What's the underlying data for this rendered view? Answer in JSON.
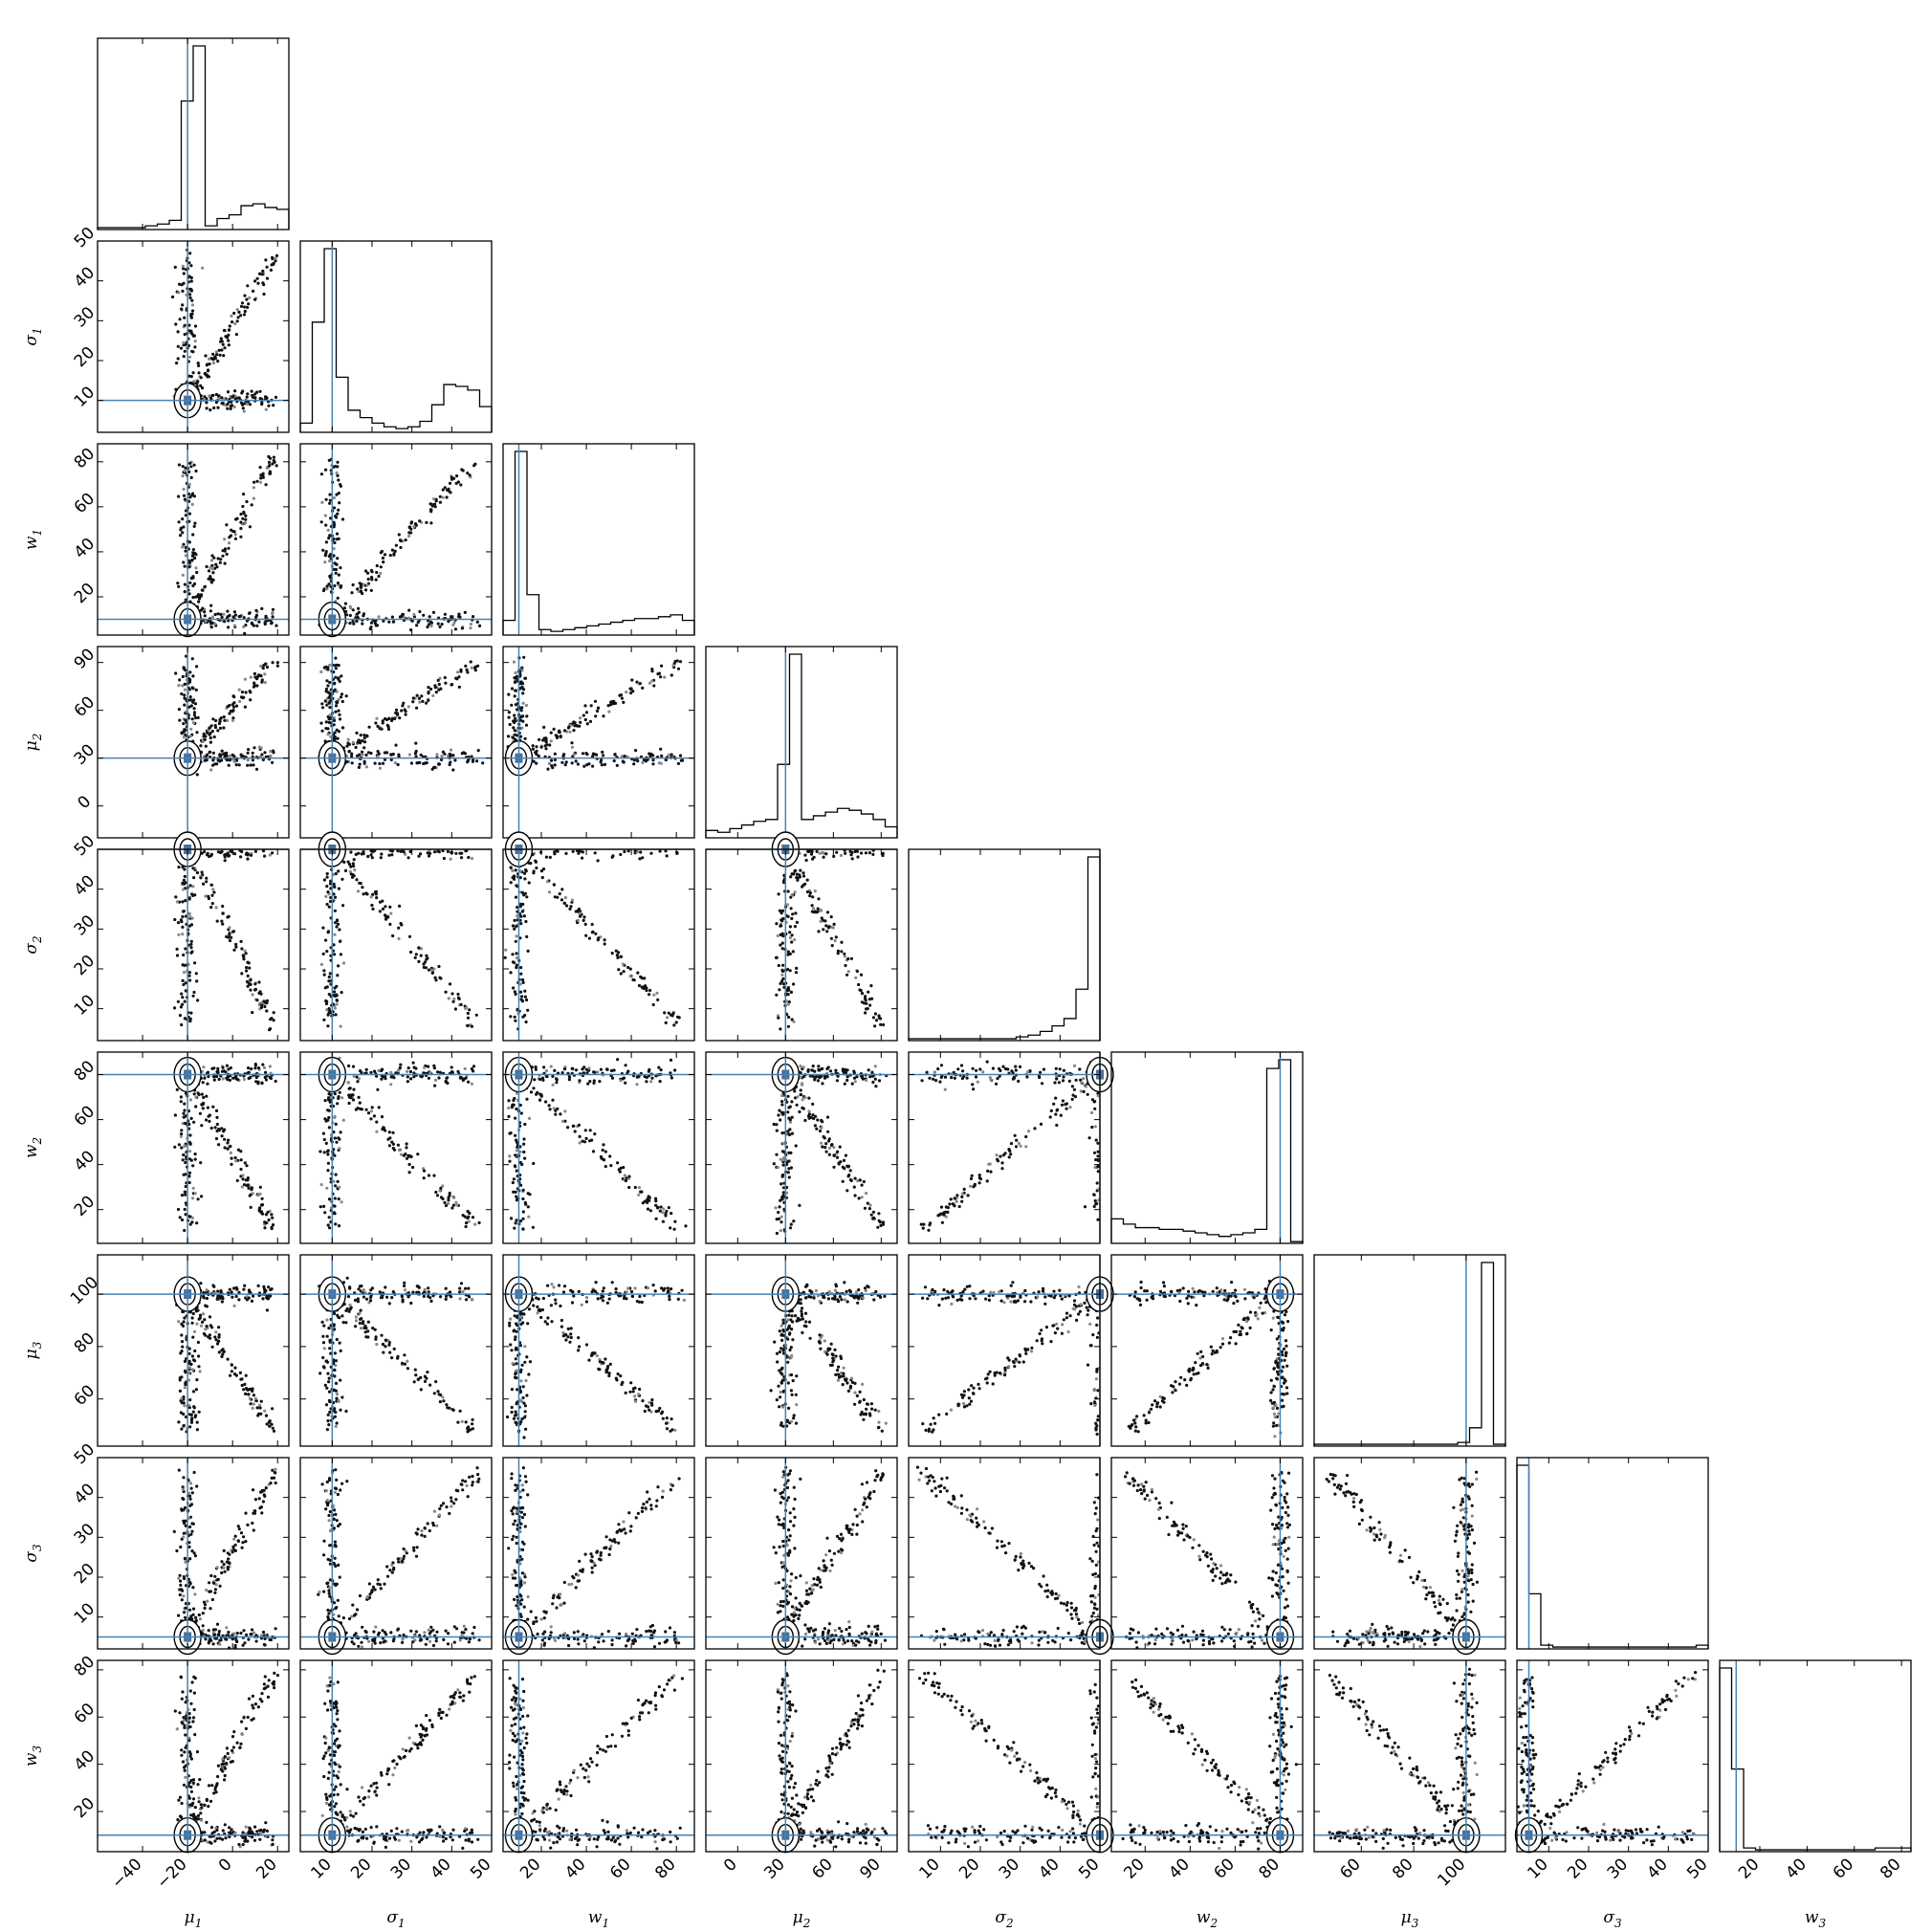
{
  "chart_data": {
    "type": "scatter",
    "subtype": "corner-plot",
    "parameters": [
      {
        "key": "mu1",
        "label_base": "μ",
        "label_sub": "1",
        "range": [
          -60,
          25
        ],
        "ticks": [
          -40,
          -20,
          0,
          20
        ],
        "truth": -20
      },
      {
        "key": "sigma1",
        "label_base": "σ",
        "label_sub": "1",
        "range": [
          2,
          50
        ],
        "ticks": [
          10,
          20,
          30,
          40,
          50
        ],
        "truth": 10
      },
      {
        "key": "w1",
        "label_base": "w",
        "label_sub": "1",
        "range": [
          3,
          88
        ],
        "ticks": [
          20,
          40,
          60,
          80
        ],
        "truth": 10
      },
      {
        "key": "mu2",
        "label_base": "μ",
        "label_sub": "2",
        "range": [
          -20,
          100
        ],
        "ticks": [
          0,
          30,
          60,
          90
        ],
        "truth": 30
      },
      {
        "key": "sigma2",
        "label_base": "σ",
        "label_sub": "2",
        "range": [
          2,
          50
        ],
        "ticks": [
          10,
          20,
          30,
          40,
          50
        ],
        "truth": 50
      },
      {
        "key": "w2",
        "label_base": "w",
        "label_sub": "2",
        "range": [
          5,
          90
        ],
        "ticks": [
          20,
          40,
          60,
          80
        ],
        "truth": 80
      },
      {
        "key": "mu3",
        "label_base": "μ",
        "label_sub": "3",
        "range": [
          42,
          115
        ],
        "ticks": [
          60,
          80,
          100
        ],
        "truth": 100
      },
      {
        "key": "sigma3",
        "label_base": "σ",
        "label_sub": "3",
        "range": [
          2,
          50
        ],
        "ticks": [
          10,
          20,
          30,
          40,
          50
        ],
        "truth": 5
      },
      {
        "key": "w3",
        "label_base": "w",
        "label_sub": "3",
        "range": [
          3,
          84
        ],
        "ticks": [
          20,
          40,
          60,
          80
        ],
        "truth": 10
      }
    ],
    "histograms": [
      {
        "param": "mu1",
        "counts": [
          1,
          1,
          1,
          1,
          2,
          3,
          5,
          70,
          100,
          2,
          6,
          8,
          13,
          14,
          12,
          11
        ]
      },
      {
        "param": "sigma1",
        "counts": [
          5,
          60,
          100,
          30,
          12,
          8,
          5,
          3,
          2,
          3,
          6,
          15,
          26,
          25,
          23,
          14
        ]
      },
      {
        "param": "w1",
        "counts": [
          8,
          100,
          22,
          3,
          2,
          3,
          4,
          5,
          6,
          7,
          8,
          9,
          9,
          10,
          11,
          8
        ]
      },
      {
        "param": "mu2",
        "counts": [
          4,
          3,
          5,
          7,
          9,
          10,
          40,
          100,
          10,
          12,
          14,
          16,
          15,
          13,
          10,
          6
        ]
      },
      {
        "param": "sigma2",
        "counts": [
          1,
          1,
          1,
          1,
          1,
          1,
          1,
          1,
          1,
          2,
          3,
          5,
          8,
          12,
          28,
          100
        ]
      },
      {
        "param": "w2",
        "counts": [
          14,
          11,
          9,
          9,
          8,
          8,
          7,
          6,
          5,
          4,
          5,
          6,
          8,
          100,
          105,
          1
        ]
      },
      {
        "param": "mu3",
        "counts": [
          1,
          1,
          1,
          1,
          1,
          1,
          1,
          1,
          1,
          1,
          1,
          1,
          2,
          10,
          100,
          1
        ]
      },
      {
        "param": "sigma3",
        "counts": [
          100,
          30,
          2,
          1,
          1,
          1,
          1,
          1,
          1,
          1,
          1,
          1,
          1,
          1,
          1,
          2
        ]
      },
      {
        "param": "w3",
        "counts": [
          100,
          45,
          2,
          1,
          1,
          1,
          1,
          1,
          1,
          1,
          1,
          1,
          1,
          2,
          2,
          2
        ]
      }
    ]
  }
}
